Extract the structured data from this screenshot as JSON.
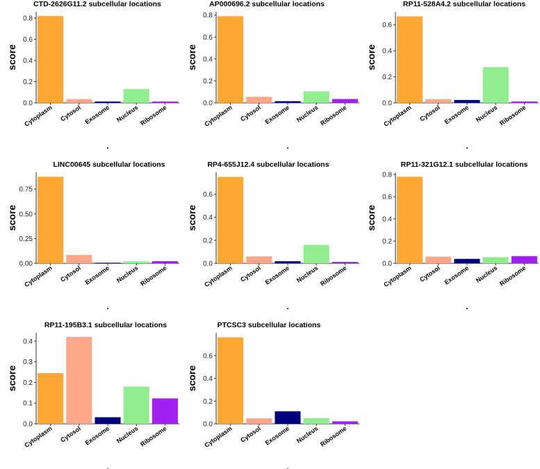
{
  "figure": {
    "ylabel": "score",
    "xlabel": "."
  },
  "chart_data": [
    {
      "type": "bar",
      "title": "CTD-2626G11.2 subcellular locations",
      "categories": [
        "Cytoplasm",
        "Cytosol",
        "Exosome",
        "Nucleus",
        "Ribosome"
      ],
      "values": [
        0.82,
        0.035,
        0.012,
        0.13,
        0.012
      ],
      "yticks": [
        "0.0",
        "0.2",
        "0.4",
        "0.6",
        "0.8"
      ],
      "ytick_values": [
        0,
        0.2,
        0.4,
        0.6,
        0.8
      ],
      "ylim": [
        0,
        0.86
      ],
      "xlabel": ".",
      "ylabel": "score",
      "grid": false
    },
    {
      "type": "bar",
      "title": "AP000696.2 subcellular locations",
      "categories": [
        "Cytoplasm",
        "Cytosol",
        "Exosome",
        "Nucleus",
        "Ribosome"
      ],
      "values": [
        0.79,
        0.055,
        0.015,
        0.105,
        0.035
      ],
      "yticks": [
        "0.0",
        "0.2",
        "0.4",
        "0.6",
        "0.8"
      ],
      "ytick_values": [
        0,
        0.2,
        0.4,
        0.6,
        0.8
      ],
      "ylim": [
        0,
        0.83
      ],
      "xlabel": ".",
      "ylabel": "score",
      "grid": false
    },
    {
      "type": "bar",
      "title": "RP11-528A4.2 subcellular locations",
      "categories": [
        "Cytoplasm",
        "Cytosol",
        "Exosome",
        "Nucleus",
        "Ribosome"
      ],
      "values": [
        0.665,
        0.028,
        0.022,
        0.275,
        0.01
      ],
      "yticks": [
        "0.0",
        "0.2",
        "0.4",
        "0.6"
      ],
      "ytick_values": [
        0,
        0.2,
        0.4,
        0.6
      ],
      "ylim": [
        0,
        0.7
      ],
      "xlabel": ".",
      "ylabel": "score",
      "grid": false
    },
    {
      "type": "bar",
      "title": "LINC00645 subcellular locations",
      "categories": [
        "Cytoplasm",
        "Cytosol",
        "Exosome",
        "Nucleus",
        "Ribosome"
      ],
      "values": [
        0.875,
        0.085,
        0.006,
        0.02,
        0.022
      ],
      "yticks": [
        "0.00",
        "0.25",
        "0.50",
        "0.75"
      ],
      "ytick_values": [
        0,
        0.25,
        0.5,
        0.75
      ],
      "ylim": [
        0,
        0.92
      ],
      "xlabel": ".",
      "ylabel": "score",
      "grid": false
    },
    {
      "type": "bar",
      "title": "RP4-655J12.4 subcellular locations",
      "categories": [
        "Cytoplasm",
        "Cytosol",
        "Exosome",
        "Nucleus",
        "Ribosome"
      ],
      "values": [
        0.75,
        0.06,
        0.018,
        0.16,
        0.012
      ],
      "yticks": [
        "0.0",
        "0.2",
        "0.4",
        "0.6"
      ],
      "ytick_values": [
        0,
        0.2,
        0.4,
        0.6
      ],
      "ylim": [
        0,
        0.79
      ],
      "xlabel": ".",
      "ylabel": "score",
      "grid": false
    },
    {
      "type": "bar",
      "title": "RP11-321G12.1 subcellular locations",
      "categories": [
        "Cytoplasm",
        "Cytosol",
        "Exosome",
        "Nucleus",
        "Ribosome"
      ],
      "values": [
        0.78,
        0.06,
        0.04,
        0.055,
        0.065
      ],
      "yticks": [
        "0.0",
        "0.2",
        "0.4",
        "0.6",
        "0.8"
      ],
      "ytick_values": [
        0,
        0.2,
        0.4,
        0.6,
        0.8
      ],
      "ylim": [
        0,
        0.82
      ],
      "xlabel": ".",
      "ylabel": "score",
      "grid": false
    },
    {
      "type": "bar",
      "title": "RP11-195B3.1 subcellular locations",
      "categories": [
        "Cytoplasm",
        "Cytosol",
        "Exosome",
        "Nucleus",
        "Ribosome"
      ],
      "values": [
        0.245,
        0.42,
        0.032,
        0.18,
        0.123
      ],
      "yticks": [
        "0.0",
        "0.1",
        "0.2",
        "0.3",
        "0.4"
      ],
      "ytick_values": [
        0,
        0.1,
        0.2,
        0.3,
        0.4
      ],
      "ylim": [
        0,
        0.44
      ],
      "xlabel": ".",
      "ylabel": "score",
      "grid": false
    },
    {
      "type": "bar",
      "title": "PTCSC3 subcellular locations",
      "categories": [
        "Cytoplasm",
        "Cytosol",
        "Exosome",
        "Nucleus",
        "Ribosome"
      ],
      "values": [
        0.76,
        0.048,
        0.11,
        0.05,
        0.022
      ],
      "yticks": [
        "0.0",
        "0.2",
        "0.4",
        "0.6"
      ],
      "ytick_values": [
        0,
        0.2,
        0.4,
        0.6
      ],
      "ylim": [
        0,
        0.8
      ],
      "xlabel": ".",
      "ylabel": "score",
      "grid": false
    }
  ],
  "colors": {
    "Cytoplasm": "#FFA733",
    "Cytosol": "#FFA58A",
    "Exosome": "#00007F",
    "Nucleus": "#90EE90",
    "Ribosome": "#A020F0"
  }
}
